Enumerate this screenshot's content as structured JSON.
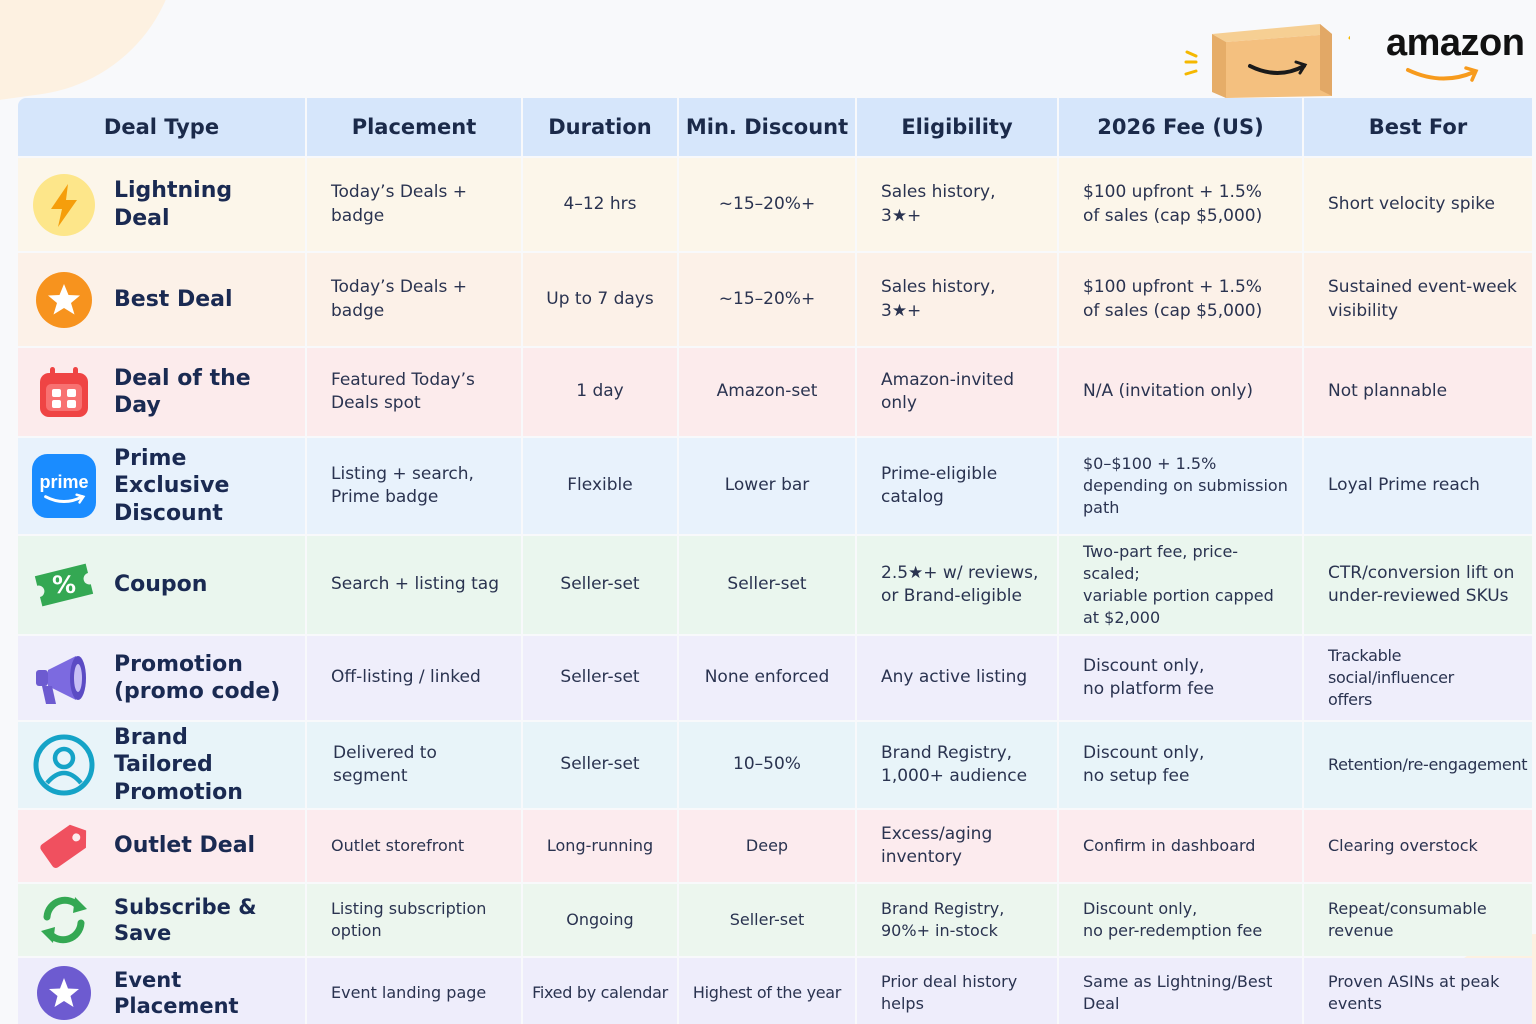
{
  "brand": {
    "name": "amazon",
    "colors": {
      "orange": "#f79b1d",
      "header": "#d6e6fb"
    }
  },
  "headers": [
    "Deal Type",
    "Placement",
    "Duration",
    "Min. Discount",
    "Eligibility",
    "2026 Fee (US)",
    "Best For"
  ],
  "rows": [
    {
      "icon": "lightning-bolt-icon",
      "type": "Lightning Deal",
      "placement": "Today’s Deals +\nbadge",
      "duration": "4–12 hrs",
      "discount": "~15–20%+",
      "eligibility": "Sales history,\n3★+",
      "fee": "$100 upfront + 1.5%\nof sales (cap $5,000)",
      "best_for": "Short velocity spike"
    },
    {
      "icon": "star-badge-icon",
      "type": "Best Deal",
      "placement": "Today’s Deals +\nbadge",
      "duration": "Up to 7 days",
      "discount": "~15–20%+",
      "eligibility": "Sales history,\n3★+",
      "fee": "$100 upfront + 1.5%\nof sales (cap $5,000)",
      "best_for": "Sustained event-week\nvisibility"
    },
    {
      "icon": "calendar-icon",
      "type": "Deal of the Day",
      "placement": "Featured Today’s\nDeals spot",
      "duration": "1 day",
      "discount": "Amazon-set",
      "eligibility": "Amazon-invited only",
      "fee": "N/A (invitation only)",
      "best_for": "Not plannable"
    },
    {
      "icon": "prime-icon",
      "icon_text": "prime",
      "type": "Prime Exclusive\nDiscount",
      "placement": "Listing + search,\nPrime badge",
      "duration": "Flexible",
      "discount": "Lower bar",
      "eligibility": "Prime-eligible\ncatalog",
      "fee": "$0–$100 + 1.5%\ndepending on submission\npath",
      "best_for": "Loyal Prime reach"
    },
    {
      "icon": "coupon-ticket-icon",
      "icon_text": "%",
      "type": "Coupon",
      "placement": "Search + listing tag",
      "duration": "Seller-set",
      "discount": "Seller-set",
      "eligibility": "2.5★+ w/ reviews,\nor Brand-eligible",
      "fee": "Two-part fee, price-scaled;\nvariable portion capped\nat $2,000",
      "best_for": "CTR/conversion lift on\nunder-reviewed SKUs"
    },
    {
      "icon": "megaphone-icon",
      "type": "Promotion\n(promo code)",
      "placement": "Off-listing / linked",
      "duration": "Seller-set",
      "discount": "None enforced",
      "eligibility": "Any active listing",
      "fee": "Discount only,\nno platform fee",
      "best_for": "Trackable social/influencer\noffers"
    },
    {
      "icon": "user-profile-icon",
      "type": "Brand Tailored\nPromotion",
      "placement": "Delivered to segment",
      "duration": "Seller-set",
      "discount": "10–50%",
      "eligibility": "Brand Registry,\n1,000+ audience",
      "fee": "Discount only,\nno setup fee",
      "best_for": "Retention/re-engagement"
    },
    {
      "icon": "price-tag-icon",
      "type": "Outlet Deal",
      "placement": "Outlet storefront",
      "duration": "Long-running",
      "discount": "Deep",
      "eligibility": "Excess/aging\ninventory",
      "fee": "Confirm in dashboard",
      "best_for": "Clearing overstock"
    },
    {
      "icon": "refresh-cycle-icon",
      "type": "Subscribe & Save",
      "placement": "Listing subscription\noption",
      "duration": "Ongoing",
      "discount": "Seller-set",
      "eligibility": "Brand Registry,\n90%+ in-stock",
      "fee": "Discount only,\nno per-redemption fee",
      "best_for": "Repeat/consumable\nrevenue"
    },
    {
      "icon": "star-event-icon",
      "type": "Event Placement",
      "placement": "Event landing page",
      "duration": "Fixed by calendar",
      "discount": "Highest of the year",
      "eligibility": "Prior deal history\nhelps",
      "fee": "Same as Lightning/Best\nDeal",
      "best_for": "Proven ASINs at peak\nevents"
    }
  ]
}
